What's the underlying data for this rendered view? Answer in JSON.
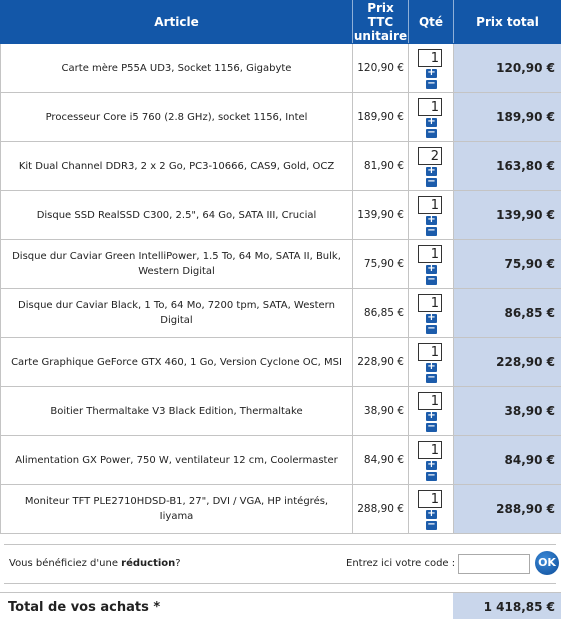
{
  "header": {
    "article": "Article",
    "unit_price_line1": "Prix TTC",
    "unit_price_line2": "unitaire",
    "qty": "Qté",
    "total": "Prix total"
  },
  "items": [
    {
      "article": "Carte mère P55A UD3, Socket 1156, Gigabyte",
      "unit_price": "120,90 €",
      "qty": "1",
      "total": "120,90 €"
    },
    {
      "article": "Processeur Core i5 760 (2.8 GHz), socket 1156, Intel",
      "unit_price": "189,90 €",
      "qty": "1",
      "total": "189,90 €"
    },
    {
      "article": "Kit Dual Channel DDR3, 2 x 2 Go, PC3-10666, CAS9, Gold, OCZ",
      "unit_price": "81,90 €",
      "qty": "2",
      "total": "163,80 €"
    },
    {
      "article": "Disque SSD RealSSD C300, 2.5\", 64 Go, SATA III, Crucial",
      "unit_price": "139,90 €",
      "qty": "1",
      "total": "139,90 €"
    },
    {
      "article": "Disque dur Caviar Green IntelliPower, 1.5 To, 64 Mo, SATA II, Bulk, Western Digital",
      "unit_price": "75,90 €",
      "qty": "1",
      "total": "75,90 €"
    },
    {
      "article": "Disque dur Caviar Black, 1 To, 64 Mo, 7200 tpm, SATA, Western Digital",
      "unit_price": "86,85 €",
      "qty": "1",
      "total": "86,85 €"
    },
    {
      "article": "Carte Graphique GeForce GTX 460, 1 Go, Version Cyclone OC, MSI",
      "unit_price": "228,90 €",
      "qty": "1",
      "total": "228,90 €"
    },
    {
      "article": "Boitier Thermaltake V3 Black Edition, Thermaltake",
      "unit_price": "38,90 €",
      "qty": "1",
      "total": "38,90 €"
    },
    {
      "article": "Alimentation GX Power, 750 W, ventilateur 12 cm, Coolermaster",
      "unit_price": "84,90 €",
      "qty": "1",
      "total": "84,90 €"
    },
    {
      "article": "Moniteur TFT PLE2710HDSD-B1, 27\", DVI / VGA, HP intégrés, Iiyama",
      "unit_price": "288,90 €",
      "qty": "1",
      "total": "288,90 €"
    }
  ],
  "qty_plus": "+",
  "qty_minus": "−",
  "reduction": {
    "prefix": "Vous bénéficiez d'une ",
    "bold": "réduction",
    "suffix": "?",
    "code_label": "Entrez ici votre code :",
    "code_value": "",
    "ok_label": "OK"
  },
  "summary": {
    "label": "Total de vos achats *",
    "value": "1 418,85 €"
  },
  "colors": {
    "header_bg": "#1357a8",
    "total_bg": "#c9d6eb",
    "button_blue": "#1c5cab"
  },
  "icons": {
    "increment": "plus-icon",
    "decrement": "minus-icon"
  }
}
